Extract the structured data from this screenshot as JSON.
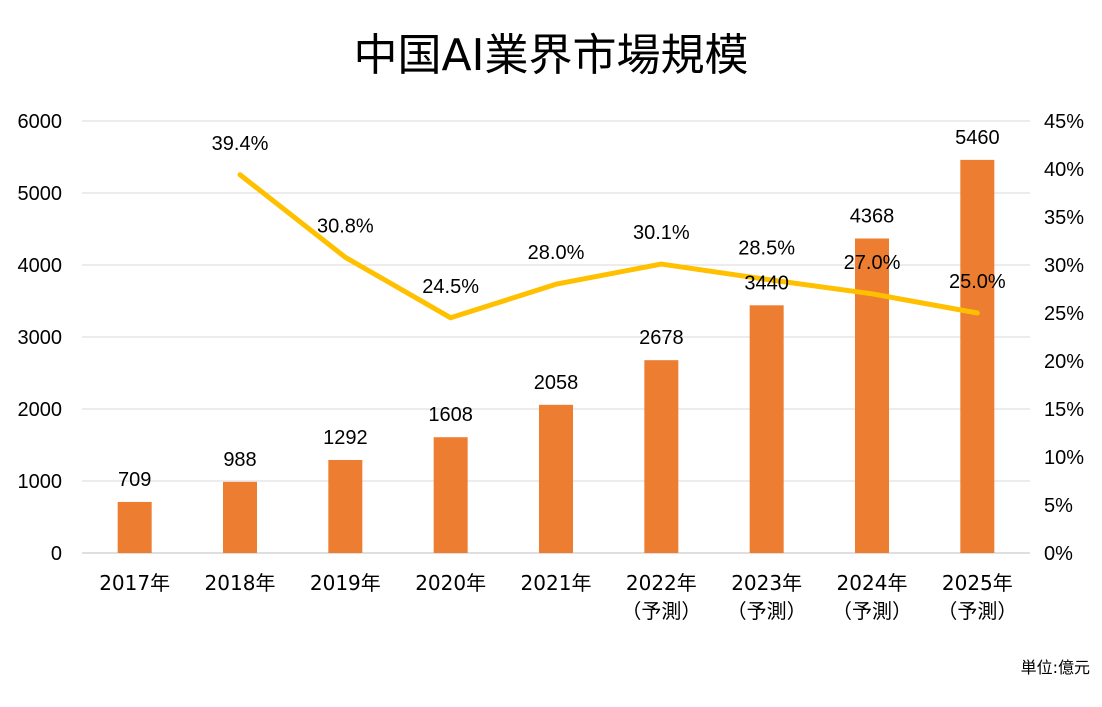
{
  "chart_data": {
    "type": "bar+line",
    "title": "中国AI業界市場規模",
    "unit_note": "単位:億元",
    "categories": [
      [
        "2017年"
      ],
      [
        "2018年"
      ],
      [
        "2019年"
      ],
      [
        "2020年"
      ],
      [
        "2021年"
      ],
      [
        "2022年",
        "（予測）"
      ],
      [
        "2023年",
        "（予測）"
      ],
      [
        "2024年",
        "（予測）"
      ],
      [
        "2025年",
        "（予測）"
      ]
    ],
    "series": [
      {
        "kind": "bar",
        "axis": "left",
        "color": "#ED7D31",
        "values": [
          709,
          988,
          1292,
          1608,
          2058,
          2678,
          3440,
          4368,
          5460
        ],
        "labels": [
          "709",
          "988",
          "1292",
          "1608",
          "2058",
          "2678",
          "3440",
          "4368",
          "5460"
        ]
      },
      {
        "kind": "line",
        "axis": "right",
        "color": "#FFC000",
        "values": [
          null,
          39.4,
          30.8,
          24.5,
          28.0,
          30.1,
          28.5,
          27.0,
          25.0
        ],
        "labels": [
          null,
          "39.4%",
          "30.8%",
          "24.5%",
          "28.0%",
          "30.1%",
          "28.5%",
          "27.0%",
          "25.0%"
        ]
      }
    ],
    "y_left": {
      "min": 0,
      "max": 6000,
      "ticks": [
        "0",
        "1000",
        "2000",
        "3000",
        "4000",
        "5000",
        "6000"
      ]
    },
    "y_right": {
      "min": 0,
      "max": 45,
      "ticks": [
        "0%",
        "5%",
        "10%",
        "15%",
        "20%",
        "25%",
        "30%",
        "35%",
        "40%",
        "45%"
      ]
    },
    "grid": true,
    "legend": "none"
  }
}
